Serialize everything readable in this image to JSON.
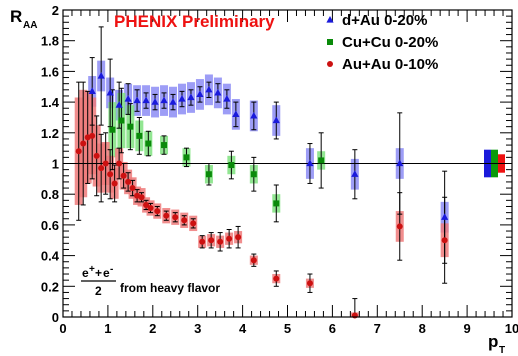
{
  "chart_data": {
    "type": "scatter",
    "title": "PHENIX Preliminary",
    "xlabel": "p",
    "xlabel_sub": "T",
    "ylabel": "R",
    "ylabel_sub": "AA",
    "xlim": [
      0,
      10
    ],
    "ylim": [
      0,
      2
    ],
    "x_ticks": [
      "0",
      "1",
      "2",
      "3",
      "4",
      "5",
      "6",
      "7",
      "8",
      "9",
      "10"
    ],
    "y_ticks": [
      "0",
      "0.2",
      "0.4",
      "0.6",
      "0.8",
      "1",
      "1.2",
      "1.4",
      "1.6",
      "1.8",
      "2"
    ],
    "reference_line": 1,
    "legend_position": "top-right",
    "annotation": {
      "num_base": "e",
      "plus": "+",
      "plus2": "+",
      "base2": "e",
      "minus": "-",
      "denominator": "2",
      "text": "from heavy flavor"
    },
    "series": [
      {
        "name": "d+Au 0-20%",
        "marker": "triangle",
        "color": "#1a1adb",
        "band_color": "#8c8cf5",
        "points": [
          {
            "x": 0.65,
            "y": 1.47,
            "err": 0.22,
            "sys": 0.1
          },
          {
            "x": 0.85,
            "y": 1.57,
            "err": 0.32,
            "sys": 0.1
          },
          {
            "x": 1.05,
            "y": 1.46,
            "err": 0.22,
            "sys": 0.1
          },
          {
            "x": 1.25,
            "y": 1.38,
            "err": 0.15,
            "sys": 0.1
          },
          {
            "x": 1.45,
            "y": 1.42,
            "err": 0.1,
            "sys": 0.1
          },
          {
            "x": 1.65,
            "y": 1.41,
            "err": 0.07,
            "sys": 0.1
          },
          {
            "x": 1.85,
            "y": 1.41,
            "err": 0.05,
            "sys": 0.1
          },
          {
            "x": 2.05,
            "y": 1.4,
            "err": 0.05,
            "sys": 0.1
          },
          {
            "x": 2.25,
            "y": 1.41,
            "err": 0.05,
            "sys": 0.1
          },
          {
            "x": 2.45,
            "y": 1.4,
            "err": 0.05,
            "sys": 0.1
          },
          {
            "x": 2.65,
            "y": 1.42,
            "err": 0.05,
            "sys": 0.1
          },
          {
            "x": 2.85,
            "y": 1.43,
            "err": 0.05,
            "sys": 0.1
          },
          {
            "x": 3.05,
            "y": 1.45,
            "err": 0.05,
            "sys": 0.1
          },
          {
            "x": 3.25,
            "y": 1.48,
            "err": 0.05,
            "sys": 0.1
          },
          {
            "x": 3.45,
            "y": 1.46,
            "err": 0.06,
            "sys": 0.1
          },
          {
            "x": 3.65,
            "y": 1.42,
            "err": 0.06,
            "sys": 0.1
          },
          {
            "x": 3.85,
            "y": 1.32,
            "err": 0.08,
            "sys": 0.1
          },
          {
            "x": 4.25,
            "y": 1.31,
            "err": 0.09,
            "sys": 0.1
          },
          {
            "x": 4.75,
            "y": 1.28,
            "err": 0.12,
            "sys": 0.1
          },
          {
            "x": 5.5,
            "y": 1.0,
            "err": 0.13,
            "sys": 0.1
          },
          {
            "x": 6.5,
            "y": 0.93,
            "err": 0.16,
            "sys": 0.1
          },
          {
            "x": 7.5,
            "y": 1.0,
            "err": 0.33,
            "sys": 0.1
          },
          {
            "x": 8.5,
            "y": 0.65,
            "err": 0.3,
            "sys": 0.1
          }
        ]
      },
      {
        "name": "Cu+Cu 0-20%",
        "marker": "square",
        "color": "#0a8a0a",
        "band_color": "#7fe27f",
        "points": [
          {
            "x": 1.1,
            "y": 1.22,
            "err": 0.26,
            "sys": 0.18
          },
          {
            "x": 1.3,
            "y": 1.28,
            "err": 0.21,
            "sys": 0.18
          },
          {
            "x": 1.5,
            "y": 1.24,
            "err": 0.15,
            "sys": 0.14
          },
          {
            "x": 1.7,
            "y": 1.18,
            "err": 0.12,
            "sys": 0.1
          },
          {
            "x": 1.9,
            "y": 1.13,
            "err": 0.08,
            "sys": 0.08
          },
          {
            "x": 2.25,
            "y": 1.12,
            "err": 0.06,
            "sys": 0.06
          },
          {
            "x": 2.75,
            "y": 1.04,
            "err": 0.06,
            "sys": 0.06
          },
          {
            "x": 3.25,
            "y": 0.93,
            "err": 0.07,
            "sys": 0.06
          },
          {
            "x": 3.75,
            "y": 0.99,
            "err": 0.09,
            "sys": 0.06
          },
          {
            "x": 4.25,
            "y": 0.93,
            "err": 0.11,
            "sys": 0.06
          },
          {
            "x": 4.75,
            "y": 0.74,
            "err": 0.12,
            "sys": 0.06
          },
          {
            "x": 5.75,
            "y": 1.02,
            "err": 0.18,
            "sys": 0.06
          }
        ]
      },
      {
        "name": "Au+Au 0-10%",
        "marker": "circle",
        "color": "#cc1111",
        "band_color": "#ef7a7a",
        "points": [
          {
            "x": 0.35,
            "y": 1.08,
            "err": 0.45,
            "sys": 0.35
          },
          {
            "x": 0.45,
            "y": 1.13,
            "err": 0.4,
            "sys": 0.35
          },
          {
            "x": 0.55,
            "y": 1.17,
            "err": 0.3,
            "sys": 0.3
          },
          {
            "x": 0.65,
            "y": 1.18,
            "err": 0.28,
            "sys": 0.25
          },
          {
            "x": 0.75,
            "y": 1.05,
            "err": 0.26,
            "sys": 0.2
          },
          {
            "x": 0.85,
            "y": 0.97,
            "err": 0.22,
            "sys": 0.16
          },
          {
            "x": 0.95,
            "y": 1.0,
            "err": 0.2,
            "sys": 0.14
          },
          {
            "x": 1.05,
            "y": 0.93,
            "err": 0.16,
            "sys": 0.12
          },
          {
            "x": 1.15,
            "y": 0.87,
            "err": 0.12,
            "sys": 0.1
          },
          {
            "x": 1.25,
            "y": 1.0,
            "err": 0.1,
            "sys": 0.1
          },
          {
            "x": 1.35,
            "y": 0.92,
            "err": 0.08,
            "sys": 0.09
          },
          {
            "x": 1.45,
            "y": 0.88,
            "err": 0.06,
            "sys": 0.08
          },
          {
            "x": 1.55,
            "y": 0.84,
            "err": 0.05,
            "sys": 0.07
          },
          {
            "x": 1.65,
            "y": 0.79,
            "err": 0.04,
            "sys": 0.06
          },
          {
            "x": 1.75,
            "y": 0.78,
            "err": 0.03,
            "sys": 0.06
          },
          {
            "x": 1.85,
            "y": 0.73,
            "err": 0.03,
            "sys": 0.05
          },
          {
            "x": 1.95,
            "y": 0.71,
            "err": 0.03,
            "sys": 0.05
          },
          {
            "x": 2.1,
            "y": 0.69,
            "err": 0.03,
            "sys": 0.05
          },
          {
            "x": 2.3,
            "y": 0.66,
            "err": 0.03,
            "sys": 0.05
          },
          {
            "x": 2.5,
            "y": 0.65,
            "err": 0.03,
            "sys": 0.05
          },
          {
            "x": 2.7,
            "y": 0.63,
            "err": 0.03,
            "sys": 0.05
          },
          {
            "x": 2.9,
            "y": 0.61,
            "err": 0.03,
            "sys": 0.05
          },
          {
            "x": 3.1,
            "y": 0.49,
            "err": 0.04,
            "sys": 0.04
          },
          {
            "x": 3.3,
            "y": 0.5,
            "err": 0.05,
            "sys": 0.04
          },
          {
            "x": 3.5,
            "y": 0.49,
            "err": 0.06,
            "sys": 0.04
          },
          {
            "x": 3.7,
            "y": 0.51,
            "err": 0.06,
            "sys": 0.04
          },
          {
            "x": 3.9,
            "y": 0.52,
            "err": 0.07,
            "sys": 0.04
          },
          {
            "x": 4.25,
            "y": 0.37,
            "err": 0.04,
            "sys": 0.03
          },
          {
            "x": 4.75,
            "y": 0.25,
            "err": 0.05,
            "sys": 0.03
          },
          {
            "x": 5.5,
            "y": 0.22,
            "err": 0.06,
            "sys": 0.03
          },
          {
            "x": 6.5,
            "y": 0.01,
            "err": 0.11,
            "sys": 0.02
          },
          {
            "x": 7.5,
            "y": 0.59,
            "err": 0.22,
            "sys": 0.1
          },
          {
            "x": 8.5,
            "y": 0.5,
            "err": 0.28,
            "sys": 0.11
          }
        ]
      }
    ],
    "normalization_boxes": [
      {
        "color": "#1a1adb",
        "half_height": 0.09
      },
      {
        "color": "#0a9a0a",
        "half_height": 0.09
      },
      {
        "color": "#ee1111",
        "half_height": 0.06
      }
    ]
  }
}
